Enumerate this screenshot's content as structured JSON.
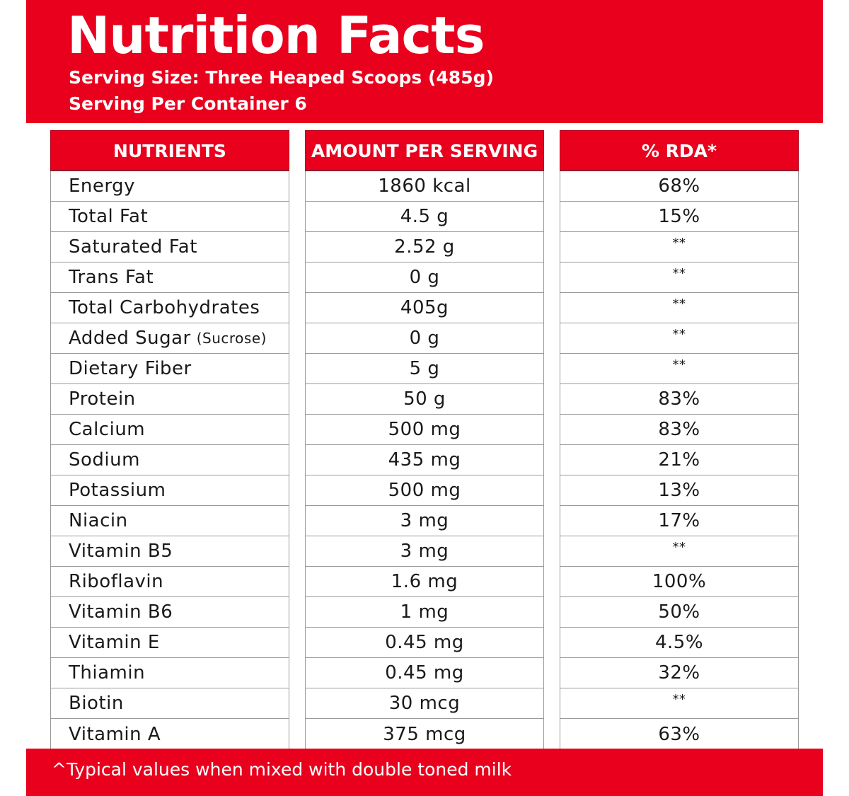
{
  "header": {
    "title": "Nutrition Facts",
    "serving_size": "Serving Size: Three Heaped Scoops (485g)",
    "servings_per_container": "Serving Per Container 6"
  },
  "table": {
    "columns": [
      "NUTRIENTS",
      "AMOUNT PER SERVING",
      "% RDA*"
    ],
    "rows": [
      {
        "nutrient": "Energy",
        "note": "",
        "amount": "1860 kcal",
        "rda": "68%"
      },
      {
        "nutrient": "Total Fat",
        "note": "",
        "amount": "4.5 g",
        "rda": "15%"
      },
      {
        "nutrient": "Saturated Fat",
        "note": "",
        "amount": "2.52 g",
        "rda": "**"
      },
      {
        "nutrient": "Trans Fat",
        "note": "",
        "amount": "0 g",
        "rda": "**"
      },
      {
        "nutrient": "Total Carbohydrates",
        "note": "",
        "amount": "405g",
        "rda": "**"
      },
      {
        "nutrient": "Added Sugar",
        "note": "(Sucrose)",
        "amount": "0 g",
        "rda": "**"
      },
      {
        "nutrient": "Dietary Fiber",
        "note": "",
        "amount": "5 g",
        "rda": "**"
      },
      {
        "nutrient": "Protein",
        "note": "",
        "amount": "50 g",
        "rda": "83%"
      },
      {
        "nutrient": "Calcium",
        "note": "",
        "amount": "500 mg",
        "rda": "83%"
      },
      {
        "nutrient": "Sodium",
        "note": "",
        "amount": "435 mg",
        "rda": "21%"
      },
      {
        "nutrient": "Potassium",
        "note": "",
        "amount": "500 mg",
        "rda": "13%"
      },
      {
        "nutrient": "Niacin",
        "note": "",
        "amount": "3 mg",
        "rda": "17%"
      },
      {
        "nutrient": "Vitamin B5",
        "note": "",
        "amount": "3 mg",
        "rda": "**"
      },
      {
        "nutrient": "Riboflavin",
        "note": "",
        "amount": "1.6 mg",
        "rda": "100%"
      },
      {
        "nutrient": "Vitamin B6",
        "note": "",
        "amount": "1 mg",
        "rda": "50%"
      },
      {
        "nutrient": "Vitamin E",
        "note": "",
        "amount": "0.45 mg",
        "rda": "4.5%"
      },
      {
        "nutrient": "Thiamin",
        "note": "",
        "amount": "0.45 mg",
        "rda": "32%"
      },
      {
        "nutrient": "Biotin",
        "note": "",
        "amount": "30 mcg",
        "rda": "**"
      },
      {
        "nutrient": "Vitamin A",
        "note": "",
        "amount": "375 mcg",
        "rda": "63%"
      }
    ]
  },
  "footer": {
    "text": "^Typical values when mixed with double toned milk"
  },
  "colors": {
    "brand_red": "#e8001d",
    "text": "#1a1a1a",
    "grid": "#9a9a9a"
  }
}
